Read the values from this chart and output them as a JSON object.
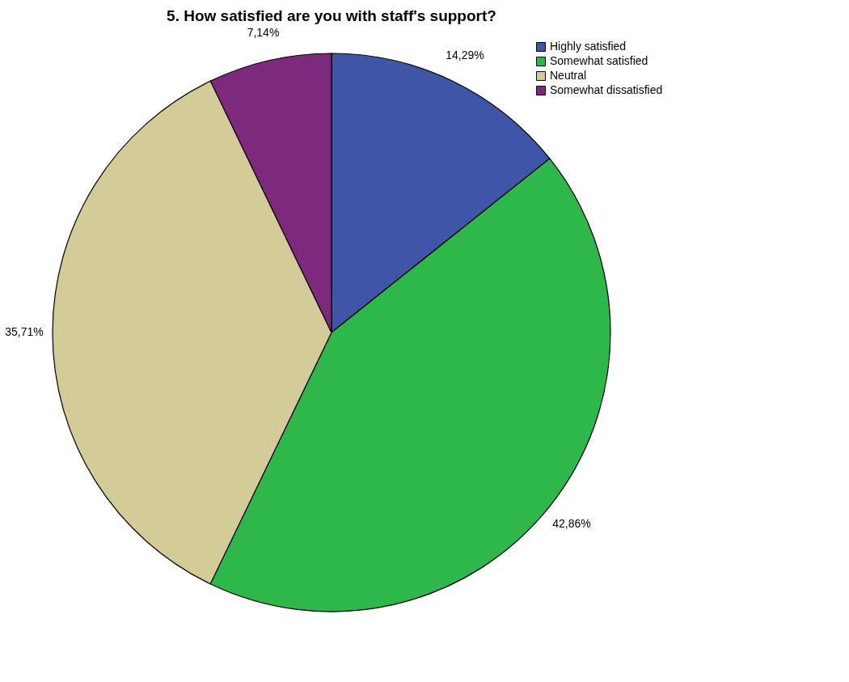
{
  "chart_data": {
    "type": "pie",
    "title": "5. How satisfied are you with staff's support?",
    "categories": [
      "Highly satisfied",
      "Somewhat satisfied",
      "Neutral",
      "Somewhat dissatisfied"
    ],
    "values": [
      14.29,
      42.86,
      35.71,
      7.14
    ],
    "colors": [
      "#3f56a8",
      "#2eb84a",
      "#d4cc98",
      "#7d2a7e"
    ],
    "value_labels": [
      "14,29%",
      "42,86%",
      "35,71%",
      "7,14%"
    ],
    "legend": "top right"
  }
}
